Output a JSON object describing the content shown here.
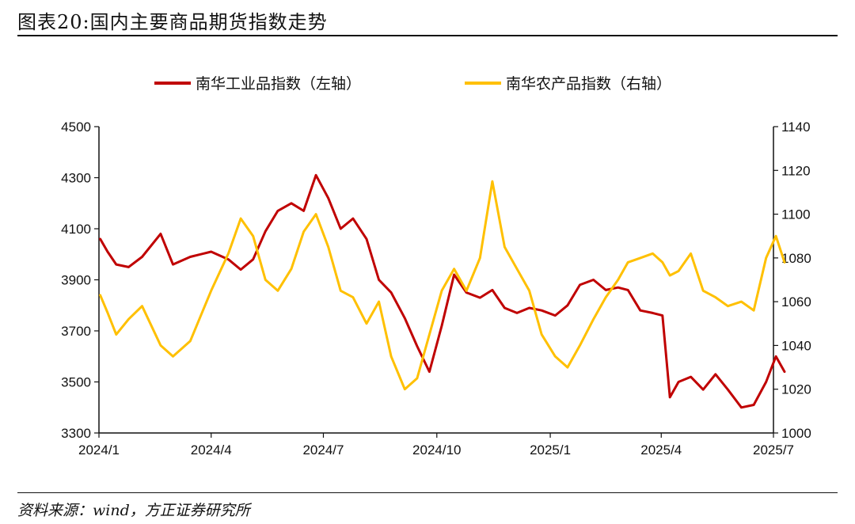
{
  "header": {
    "title": "图表20:国内主要商品期货指数走势"
  },
  "footer": {
    "source": "资料来源：wind，方正证券研究所"
  },
  "chart_data": {
    "type": "line",
    "title": "图表20:国内主要商品期货指数走势",
    "legend_position": "top-center",
    "grid": false,
    "x_ticks": [
      "2024/1",
      "2024/4",
      "2024/7",
      "2024/10",
      "2025/1",
      "2025/4",
      "2025/7"
    ],
    "y_left": {
      "ticks": [
        3300,
        3500,
        3700,
        3900,
        4100,
        4300,
        4500
      ],
      "ylim": [
        3300,
        4500
      ]
    },
    "y_right": {
      "ticks": [
        1000,
        1020,
        1040,
        1060,
        1080,
        1100,
        1120,
        1140
      ],
      "ylim": [
        1000,
        1140
      ]
    },
    "series": [
      {
        "name": "南华工业品指数（左轴）",
        "axis": "left",
        "color": "#C00000",
        "points": [
          [
            "2024-01-02",
            4060
          ],
          [
            "2024-01-08",
            4010
          ],
          [
            "2024-01-15",
            3960
          ],
          [
            "2024-01-25",
            3950
          ],
          [
            "2024-02-05",
            3990
          ],
          [
            "2024-02-20",
            4080
          ],
          [
            "2024-03-01",
            3960
          ],
          [
            "2024-03-15",
            3990
          ],
          [
            "2024-04-01",
            4010
          ],
          [
            "2024-04-15",
            3980
          ],
          [
            "2024-04-25",
            3940
          ],
          [
            "2024-05-05",
            3980
          ],
          [
            "2024-05-15",
            4090
          ],
          [
            "2024-05-25",
            4170
          ],
          [
            "2024-06-05",
            4200
          ],
          [
            "2024-06-15",
            4170
          ],
          [
            "2024-06-25",
            4310
          ],
          [
            "2024-07-05",
            4220
          ],
          [
            "2024-07-15",
            4100
          ],
          [
            "2024-07-25",
            4140
          ],
          [
            "2024-08-05",
            4060
          ],
          [
            "2024-08-15",
            3900
          ],
          [
            "2024-08-25",
            3850
          ],
          [
            "2024-09-05",
            3750
          ],
          [
            "2024-09-15",
            3640
          ],
          [
            "2024-09-25",
            3540
          ],
          [
            "2024-10-05",
            3720
          ],
          [
            "2024-10-15",
            3920
          ],
          [
            "2024-10-25",
            3850
          ],
          [
            "2024-11-05",
            3830
          ],
          [
            "2024-11-15",
            3860
          ],
          [
            "2024-11-25",
            3790
          ],
          [
            "2024-12-05",
            3770
          ],
          [
            "2024-12-15",
            3790
          ],
          [
            "2024-12-25",
            3780
          ],
          [
            "2025-01-05",
            3760
          ],
          [
            "2025-01-15",
            3800
          ],
          [
            "2025-01-25",
            3880
          ],
          [
            "2025-02-05",
            3900
          ],
          [
            "2025-02-15",
            3860
          ],
          [
            "2025-02-25",
            3870
          ],
          [
            "2025-03-05",
            3860
          ],
          [
            "2025-03-15",
            3780
          ],
          [
            "2025-03-25",
            3770
          ],
          [
            "2025-04-02",
            3760
          ],
          [
            "2025-04-08",
            3440
          ],
          [
            "2025-04-15",
            3500
          ],
          [
            "2025-04-25",
            3520
          ],
          [
            "2025-05-05",
            3470
          ],
          [
            "2025-05-15",
            3530
          ],
          [
            "2025-05-25",
            3470
          ],
          [
            "2025-06-05",
            3400
          ],
          [
            "2025-06-15",
            3410
          ],
          [
            "2025-06-25",
            3500
          ],
          [
            "2025-07-03",
            3600
          ],
          [
            "2025-07-10",
            3540
          ]
        ]
      },
      {
        "name": "南华农产品指数（右轴）",
        "axis": "right",
        "color": "#FFC000",
        "points": [
          [
            "2024-01-02",
            1063
          ],
          [
            "2024-01-08",
            1055
          ],
          [
            "2024-01-15",
            1045
          ],
          [
            "2024-01-25",
            1052
          ],
          [
            "2024-02-05",
            1058
          ],
          [
            "2024-02-20",
            1040
          ],
          [
            "2024-03-01",
            1035
          ],
          [
            "2024-03-15",
            1042
          ],
          [
            "2024-04-01",
            1065
          ],
          [
            "2024-04-15",
            1082
          ],
          [
            "2024-04-25",
            1098
          ],
          [
            "2024-05-05",
            1090
          ],
          [
            "2024-05-15",
            1070
          ],
          [
            "2024-05-25",
            1065
          ],
          [
            "2024-06-05",
            1075
          ],
          [
            "2024-06-15",
            1092
          ],
          [
            "2024-06-25",
            1100
          ],
          [
            "2024-07-05",
            1085
          ],
          [
            "2024-07-15",
            1065
          ],
          [
            "2024-07-25",
            1062
          ],
          [
            "2024-08-05",
            1050
          ],
          [
            "2024-08-15",
            1060
          ],
          [
            "2024-08-25",
            1035
          ],
          [
            "2024-09-05",
            1020
          ],
          [
            "2024-09-15",
            1025
          ],
          [
            "2024-09-25",
            1045
          ],
          [
            "2024-10-05",
            1065
          ],
          [
            "2024-10-15",
            1075
          ],
          [
            "2024-10-25",
            1065
          ],
          [
            "2024-11-05",
            1080
          ],
          [
            "2024-11-15",
            1115
          ],
          [
            "2024-11-25",
            1085
          ],
          [
            "2024-12-05",
            1075
          ],
          [
            "2024-12-15",
            1065
          ],
          [
            "2024-12-25",
            1045
          ],
          [
            "2025-01-05",
            1035
          ],
          [
            "2025-01-15",
            1030
          ],
          [
            "2025-01-25",
            1040
          ],
          [
            "2025-02-05",
            1052
          ],
          [
            "2025-02-15",
            1062
          ],
          [
            "2025-02-25",
            1070
          ],
          [
            "2025-03-05",
            1078
          ],
          [
            "2025-03-15",
            1080
          ],
          [
            "2025-03-25",
            1082
          ],
          [
            "2025-04-02",
            1078
          ],
          [
            "2025-04-08",
            1072
          ],
          [
            "2025-04-15",
            1074
          ],
          [
            "2025-04-25",
            1082
          ],
          [
            "2025-05-05",
            1065
          ],
          [
            "2025-05-15",
            1062
          ],
          [
            "2025-05-25",
            1058
          ],
          [
            "2025-06-05",
            1060
          ],
          [
            "2025-06-15",
            1056
          ],
          [
            "2025-06-25",
            1080
          ],
          [
            "2025-07-03",
            1090
          ],
          [
            "2025-07-10",
            1078
          ]
        ]
      }
    ]
  }
}
